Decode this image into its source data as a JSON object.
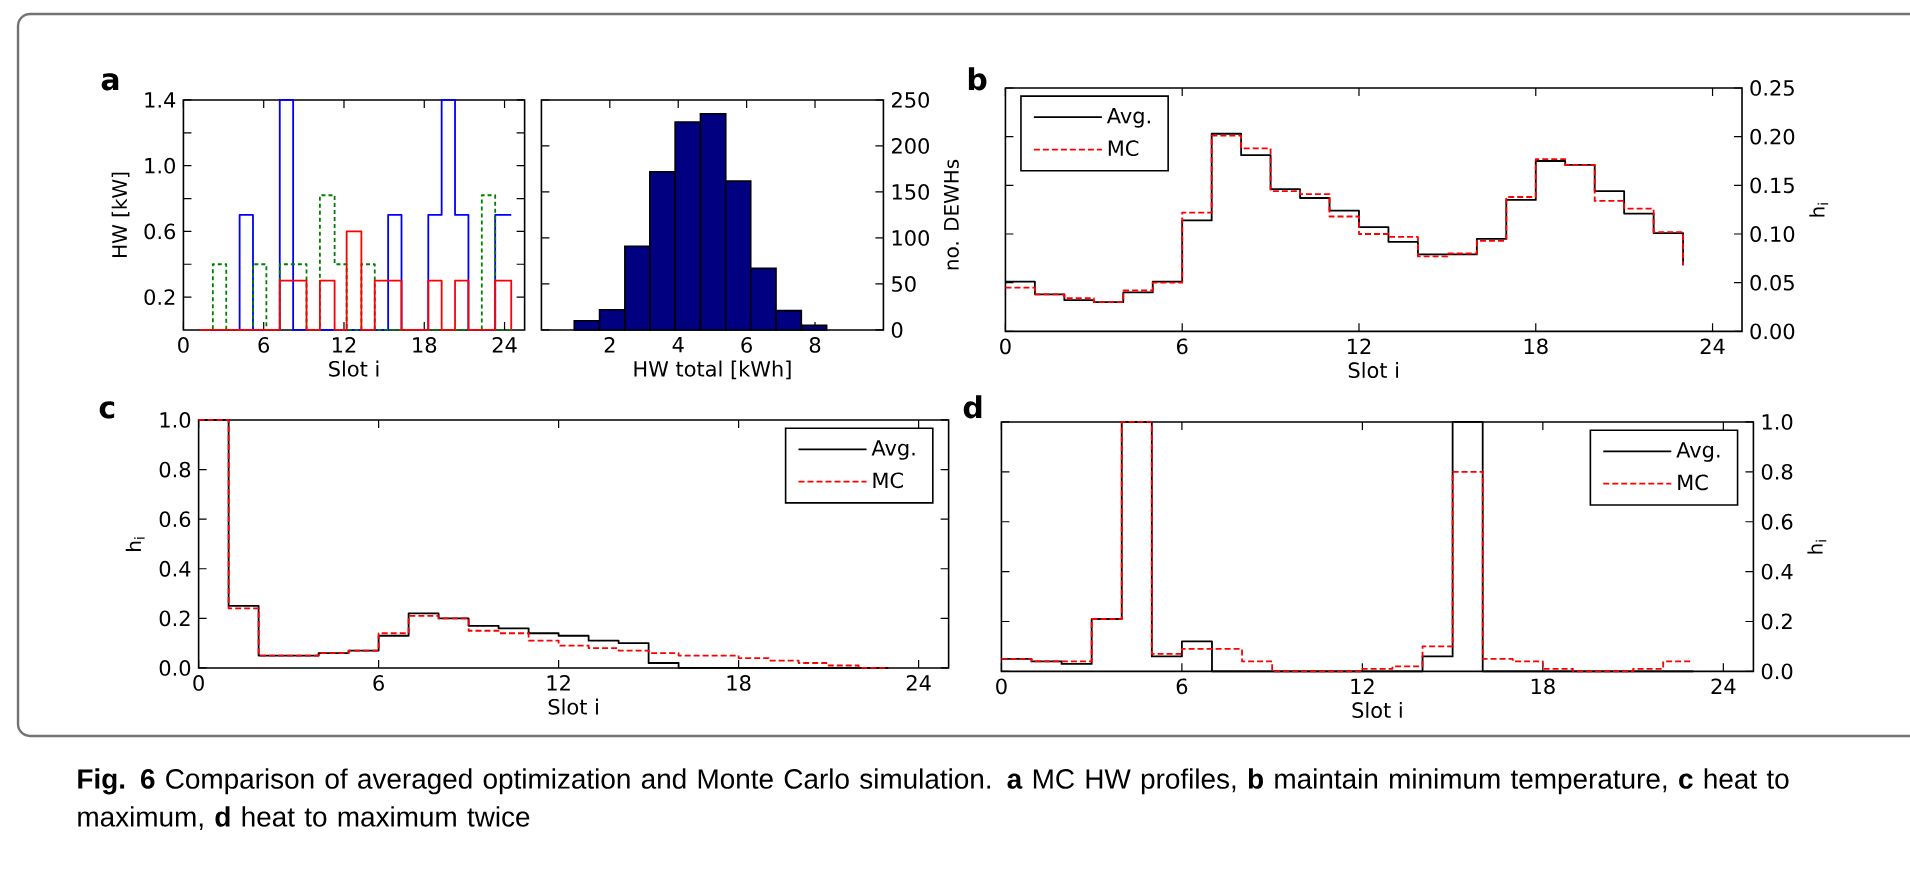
{
  "chart_data": [
    {
      "type": "step",
      "title": "a",
      "xlabel": "Slot i",
      "ylabel": "HW [kW]",
      "xlim": [
        0,
        25.5
      ],
      "xticks": [
        0,
        6,
        12,
        18,
        24
      ],
      "ylim": [
        0,
        1.4
      ],
      "yticks": [
        {
          "value": 0.2,
          "label": "0.2"
        },
        {
          "value": 0.4,
          "label": null
        },
        {
          "value": 0.6,
          "label": "0.6"
        },
        {
          "value": 0.8,
          "label": null
        },
        {
          "value": 1.0,
          "label": "1.0"
        },
        {
          "value": 1.2,
          "label": null
        },
        {
          "value": 1.4,
          "label": "1.4"
        }
      ],
      "annotations": [
        "**Fig. 6** Comparison of averaged optimization and Monte Carlo simulation. **a** MC HW profiles, **b** maintain minimum temperature, **c** heat to maximum, **d** heat to maximum twice"
      ],
      "series": [
        {
          "color": "#0000ff",
          "line_style": "solid",
          "x": [
            1.2,
            4.2,
            5.2,
            7.2,
            8.2,
            15.3,
            16.3,
            18.3,
            19.3,
            20.3,
            21.3,
            23.3,
            24.5
          ],
          "values": [
            0,
            0.7,
            0,
            1.4,
            0,
            0.7,
            0,
            0.7,
            1.4,
            0.7,
            0,
            0.7,
            0.7
          ]
        },
        {
          "color": "#008000",
          "line_style": "dotted",
          "x": [
            1.2,
            2.2,
            3.2,
            5.2,
            6.2,
            7.2,
            9.2,
            10.2,
            11.3,
            12.2,
            13.3,
            14.3,
            22.3,
            23.3,
            24.5
          ],
          "values": [
            0,
            0.4,
            0,
            0.4,
            0,
            0.4,
            0,
            0.82,
            0.4,
            0,
            0.4,
            0,
            0.82,
            0,
            0
          ]
        },
        {
          "color": "#ff0000",
          "line_style": "solid",
          "x": [
            1.2,
            7.2,
            9.2,
            10.2,
            11.3,
            12.2,
            13.3,
            14.3,
            16.3,
            18.3,
            19.3,
            20.3,
            21.3,
            23.3,
            24.5
          ],
          "values": [
            0,
            0.3,
            0,
            0.3,
            0,
            0.6,
            0,
            0.3,
            0,
            0.3,
            0,
            0.3,
            0,
            0.3,
            0
          ]
        }
      ]
    },
    {
      "type": "histogram",
      "xlabel": "HW total [kWh]",
      "ylabel": "no. DEWHs",
      "xlim": [
        0,
        10
      ],
      "xticks": [
        2,
        4,
        6,
        8
      ],
      "ylim": [
        0,
        250
      ],
      "yticks": [
        0,
        50,
        100,
        150,
        200,
        250
      ],
      "color": "#000080",
      "bins": [
        0.96,
        1.7,
        2.44,
        3.17,
        3.91,
        4.65,
        5.39,
        6.12,
        6.86,
        7.6,
        8.34
      ],
      "values": [
        10,
        22,
        91,
        172,
        226,
        235,
        162,
        67,
        21,
        5
      ]
    },
    {
      "type": "step",
      "title": "b",
      "xlabel": "Slot i",
      "ylabel": "h$_{i}$",
      "xlim": [
        0,
        25
      ],
      "xticks": [
        0,
        6,
        12,
        18,
        24
      ],
      "ylim": [
        0,
        0.25
      ],
      "yticks": [
        {
          "value": 0,
          "label": "0.00"
        },
        {
          "value": 0.05,
          "label": "0.05"
        },
        {
          "value": 0.1,
          "label": "0.10"
        },
        {
          "value": 0.15,
          "label": "0.15"
        },
        {
          "value": 0.2,
          "label": "0.20"
        },
        {
          "value": 0.25,
          "label": "0.25"
        }
      ],
      "legend": "top left",
      "x": [
        0,
        1,
        2,
        3,
        4,
        5,
        6,
        7,
        8,
        9,
        10,
        11,
        12,
        13,
        14,
        15,
        16,
        17,
        18,
        19,
        20,
        21,
        22,
        23
      ],
      "series": [
        {
          "name": "Avg.",
          "color": "#000000",
          "line_style": "solid",
          "values": [
            0.051,
            0.038,
            0.032,
            0.03,
            0.04,
            0.051,
            0.114,
            0.203,
            0.181,
            0.146,
            0.137,
            0.124,
            0.107,
            0.092,
            0.079,
            0.079,
            0.095,
            0.135,
            0.175,
            0.171,
            0.144,
            0.121,
            0.101,
            0.068
          ]
        },
        {
          "name": "MC",
          "color": "#ff0000",
          "line_style": "dashed",
          "values": [
            0.045,
            0.038,
            0.034,
            0.03,
            0.042,
            0.05,
            0.122,
            0.201,
            0.188,
            0.144,
            0.141,
            0.118,
            0.1,
            0.097,
            0.077,
            0.08,
            0.093,
            0.138,
            0.177,
            0.171,
            0.134,
            0.126,
            0.102,
            0.068
          ]
        }
      ]
    },
    {
      "type": "step",
      "title": "c",
      "xlabel": "Slot i",
      "ylabel": "h$_{i}$",
      "xlim": [
        0,
        25
      ],
      "xticks": [
        0,
        6,
        12,
        18,
        24
      ],
      "ylim": [
        0,
        1
      ],
      "yticks": [
        {
          "value": 0,
          "label": "0.0"
        },
        {
          "value": 0.2,
          "label": "0.2"
        },
        {
          "value": 0.4,
          "label": "0.4"
        },
        {
          "value": 0.6,
          "label": "0.6"
        },
        {
          "value": 0.8,
          "label": "0.8"
        },
        {
          "value": 1,
          "label": "1.0"
        }
      ],
      "legend": "top right",
      "x": [
        0,
        1,
        2,
        3,
        4,
        5,
        6,
        7,
        8,
        9,
        10,
        11,
        12,
        13,
        14,
        15,
        16,
        17,
        18,
        19,
        20,
        21,
        22,
        23
      ],
      "series": [
        {
          "name": "Avg.",
          "color": "#000000",
          "line_style": "solid",
          "values": [
            1.0,
            0.25,
            0.05,
            0.05,
            0.06,
            0.07,
            0.13,
            0.22,
            0.2,
            0.17,
            0.16,
            0.14,
            0.13,
            0.11,
            0.1,
            0.02,
            0,
            0,
            0,
            0,
            0,
            0,
            0,
            0
          ]
        },
        {
          "name": "MC",
          "color": "#ff0000",
          "line_style": "dashed",
          "values": [
            1.0,
            0.24,
            0.05,
            0.05,
            0.06,
            0.07,
            0.14,
            0.21,
            0.2,
            0.15,
            0.14,
            0.11,
            0.09,
            0.08,
            0.07,
            0.06,
            0.05,
            0.05,
            0.04,
            0.03,
            0.02,
            0.01,
            0,
            0
          ]
        }
      ]
    },
    {
      "type": "step",
      "title": "d",
      "xlabel": "Slot i",
      "ylabel": "h$_{i}$",
      "xlim": [
        0,
        25
      ],
      "xticks": [
        0,
        6,
        12,
        18,
        24
      ],
      "ylim": [
        0,
        1
      ],
      "yticks": [
        {
          "value": 0,
          "label": "0.0"
        },
        {
          "value": 0.2,
          "label": "0.2"
        },
        {
          "value": 0.4,
          "label": "0.4"
        },
        {
          "value": 0.6,
          "label": "0.6"
        },
        {
          "value": 0.8,
          "label": "0.8"
        },
        {
          "value": 1,
          "label": "1.0"
        }
      ],
      "legend": "top right",
      "x": [
        0,
        1,
        2,
        3,
        4,
        5,
        6,
        7,
        8,
        9,
        10,
        11,
        12,
        13,
        14,
        15,
        16,
        17,
        18,
        19,
        20,
        21,
        22,
        23
      ],
      "series": [
        {
          "name": "Avg.",
          "color": "#000000",
          "line_style": "solid",
          "values": [
            0.05,
            0.04,
            0.03,
            0.21,
            1.0,
            0.06,
            0.12,
            0,
            0,
            0,
            0,
            0,
            0,
            0,
            0.06,
            1.0,
            0,
            0,
            0,
            0,
            0,
            0,
            0,
            0
          ]
        },
        {
          "name": "MC",
          "color": "#ff0000",
          "line_style": "dashed",
          "values": [
            0.05,
            0.04,
            0.04,
            0.21,
            1.0,
            0.07,
            0.09,
            0.09,
            0.04,
            0,
            0,
            0,
            0.01,
            0.02,
            0.1,
            0.8,
            0.05,
            0.04,
            0.01,
            0,
            0,
            0.01,
            0.04,
            0.04
          ]
        }
      ]
    }
  ]
}
